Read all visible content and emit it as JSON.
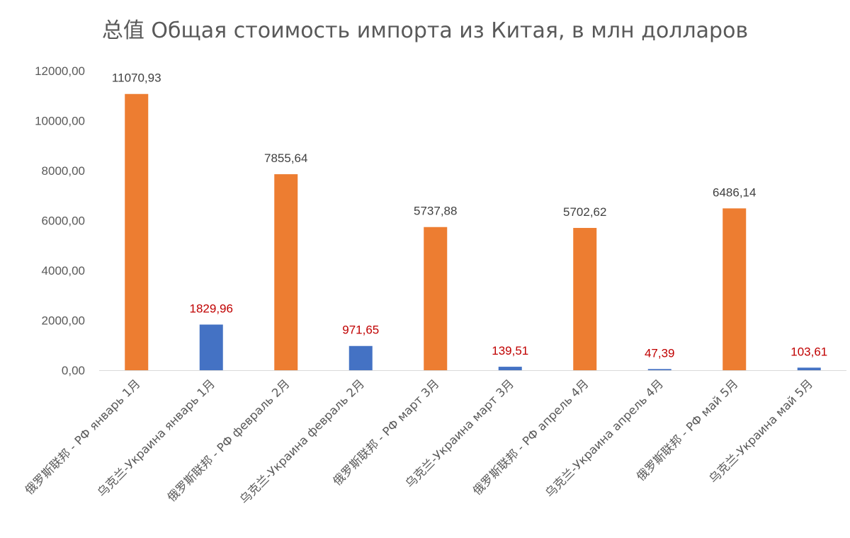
{
  "chart_data": {
    "type": "bar",
    "title": "总值  Общая стоимость импорта из Китая, в млн долларов",
    "xlabel": "",
    "ylabel": "",
    "ylim": [
      0,
      12000
    ],
    "y_ticks": [
      "0,00",
      "2000,00",
      "4000,00",
      "6000,00",
      "8000,00",
      "10000,00",
      "12000,00"
    ],
    "gridlines": false,
    "legend": "none",
    "categories": [
      "俄罗斯联邦 - РФ январь 1月",
      "乌克兰-Украина январь 1月",
      "俄罗斯联邦 - РФ февраль 2月",
      "乌克兰-Украина февраль 2月",
      "俄罗斯联邦 - РФ март 3月",
      "乌克兰-Украина март 3月",
      "俄罗斯联邦 - РФ апрель 4月",
      "乌克兰-Украина апрель 4月",
      "俄罗斯联邦 - РФ май 5月",
      "乌克兰-Украина май 5月"
    ],
    "values": [
      11070.93,
      1829.96,
      7855.64,
      971.65,
      5737.88,
      139.51,
      5702.62,
      47.39,
      6486.14,
      103.61
    ],
    "value_labels": [
      "11070,93",
      "1829,96",
      "7855,64",
      "971,65",
      "5737,88",
      "139,51",
      "5702,62",
      "47,39",
      "6486,14",
      "103,61"
    ],
    "bar_colors": [
      "#ED7D31",
      "#4472C4",
      "#ED7D31",
      "#4472C4",
      "#ED7D31",
      "#4472C4",
      "#ED7D31",
      "#4472C4",
      "#ED7D31",
      "#4472C4"
    ],
    "value_label_colors": [
      "#404040",
      "#C00000",
      "#404040",
      "#C00000",
      "#404040",
      "#C00000",
      "#404040",
      "#C00000",
      "#404040",
      "#C00000"
    ]
  }
}
